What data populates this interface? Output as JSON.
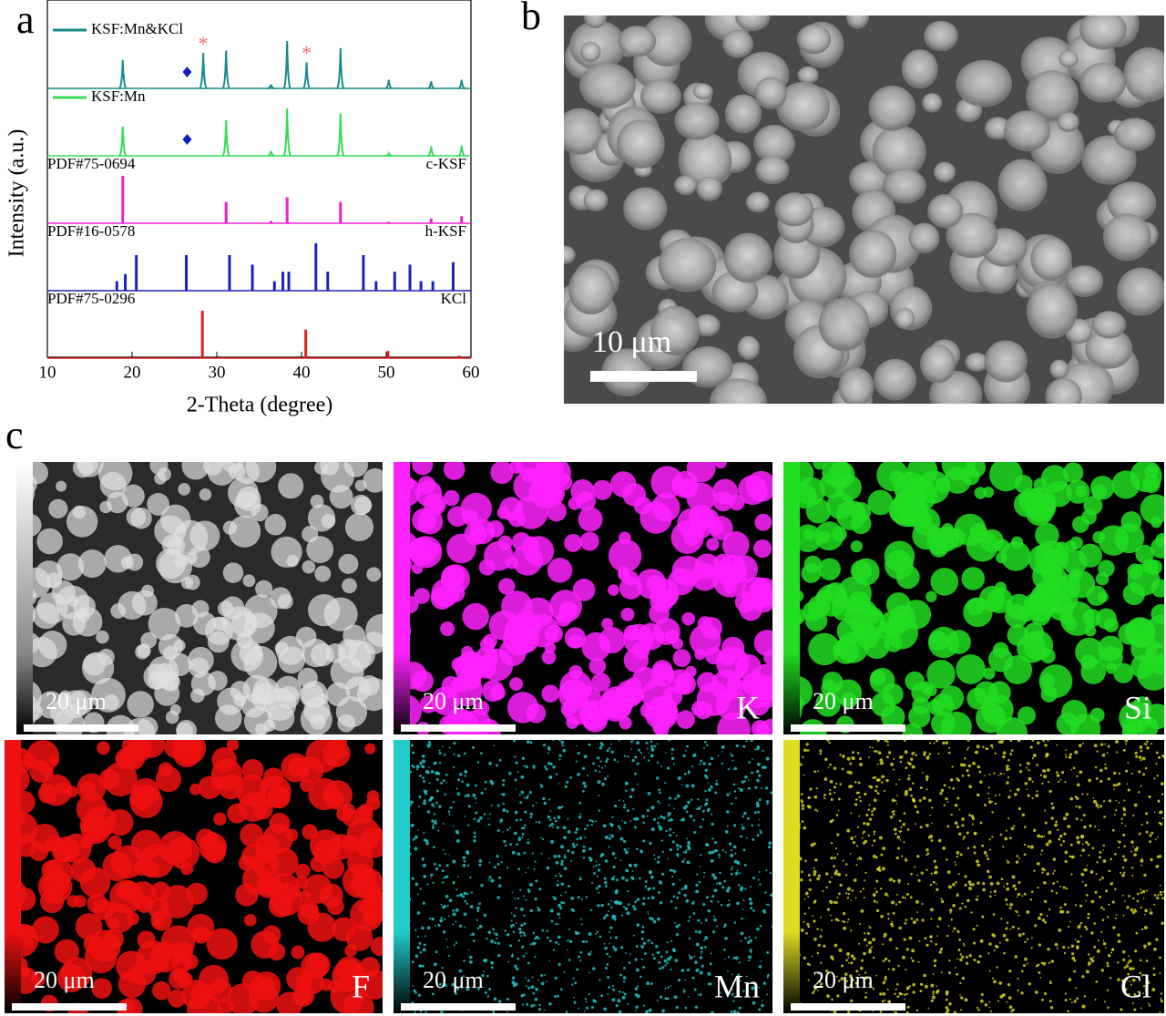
{
  "panel_labels": [
    "a",
    "b",
    "c"
  ],
  "chart_data": {
    "type": "line",
    "x_label": "2-Theta (degree)",
    "y_label": "Intensity (a.u.)",
    "xlim": [
      10,
      60
    ],
    "xticks": [
      10,
      20,
      30,
      40,
      50,
      60
    ],
    "series": [
      {
        "name": "KSF:Mn&KCl",
        "color": "#1a8a8a",
        "style": "profile",
        "x": [
          18.9,
          28.4,
          31.1,
          36.4,
          38.3,
          40.6,
          44.6,
          50.3,
          55.3,
          58.9
        ],
        "values": [
          60,
          75,
          80,
          8,
          100,
          55,
          85,
          18,
          15,
          18
        ]
      },
      {
        "name": "KSF:Mn",
        "color": "#33dd55",
        "style": "profile",
        "x": [
          18.9,
          31.1,
          36.4,
          38.3,
          44.6,
          50.3,
          55.3,
          58.9
        ],
        "values": [
          62,
          75,
          10,
          100,
          90,
          5,
          20,
          22
        ]
      },
      {
        "name": "PDF#75-0694",
        "label": "c-KSF",
        "color": "#ee22cc",
        "style": "stick",
        "x": [
          18.9,
          31.1,
          36.4,
          38.3,
          44.6,
          50.3,
          55.3,
          58.9
        ],
        "values": [
          100,
          45,
          5,
          55,
          45,
          3,
          10,
          15
        ]
      },
      {
        "name": "PDF#16-0578",
        "label": "h-KSF",
        "color": "#1a22bb",
        "style": "stick",
        "x": [
          18.2,
          19.2,
          20.5,
          26.4,
          31.5,
          34.2,
          36.8,
          37.8,
          38.5,
          41.7,
          43.1,
          47.3,
          48.8,
          51.0,
          52.8,
          54.1,
          55.5,
          57.9
        ],
        "values": [
          20,
          35,
          75,
          75,
          75,
          55,
          20,
          40,
          40,
          100,
          40,
          75,
          20,
          40,
          55,
          20,
          20,
          60
        ]
      },
      {
        "name": "PDF#75-0296",
        "label": "KCl",
        "color": "#e02020",
        "style": "stick",
        "x": [
          28.3,
          40.5,
          50.2,
          58.6
        ],
        "values": [
          100,
          60,
          15,
          5
        ]
      }
    ],
    "annotations": [
      {
        "text": "*",
        "x": 28.4,
        "series": 0,
        "color": "#f07070"
      },
      {
        "text": "*",
        "x": 40.6,
        "series": 0,
        "color": "#f07070"
      },
      {
        "symbol": "diamond",
        "x": 26.5,
        "series": 0,
        "color": "#1020c0"
      },
      {
        "symbol": "diamond",
        "x": 26.5,
        "series": 1,
        "color": "#1020c0"
      }
    ]
  },
  "sem_image": {
    "scale_bar": "10 μm"
  },
  "eds_maps": [
    {
      "scale_bar": "20 μm",
      "color": "#e0e0e0"
    },
    {
      "scale_bar": "20 μm",
      "element": "K",
      "color": "#ff22ff"
    },
    {
      "scale_bar": "20 μm",
      "element": "Si",
      "color": "#22dd22"
    },
    {
      "scale_bar": "20 μm",
      "element": "F",
      "color": "#ee1111"
    },
    {
      "scale_bar": "20 μm",
      "element": "Mn",
      "color": "#22cccc"
    },
    {
      "scale_bar": "20 μm",
      "element": "Cl",
      "color": "#dddd22"
    }
  ]
}
